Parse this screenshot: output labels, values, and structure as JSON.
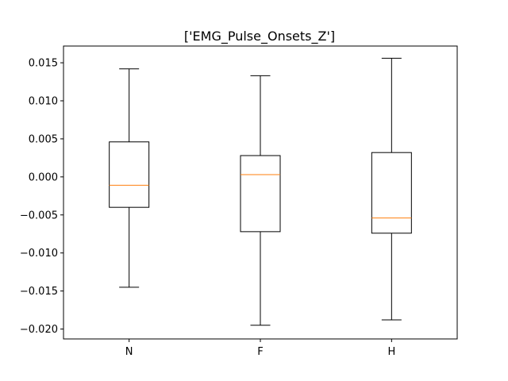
{
  "chart_data": {
    "type": "box",
    "title": "['EMG_Pulse_Onsets_Z']",
    "xlabel": "",
    "ylabel": "",
    "categories": [
      "N",
      "F",
      "H"
    ],
    "boxes": [
      {
        "whisker_low": -0.0145,
        "q1": -0.004,
        "median": -0.0011,
        "q3": 0.0046,
        "whisker_high": 0.0142
      },
      {
        "whisker_low": -0.0195,
        "q1": -0.0072,
        "median": 0.0003,
        "q3": 0.0028,
        "whisker_high": 0.0133
      },
      {
        "whisker_low": -0.0188,
        "q1": -0.0074,
        "median": -0.0054,
        "q3": 0.0032,
        "whisker_high": 0.0156
      }
    ],
    "ylim": [
      -0.0213,
      0.0172
    ],
    "yticks": [
      -0.02,
      -0.015,
      -0.01,
      -0.005,
      0.0,
      0.005,
      0.01,
      0.015
    ],
    "ytick_labels": [
      "−0.020",
      "−0.015",
      "−0.010",
      "−0.005",
      "0.000",
      "0.005",
      "0.010",
      "0.015"
    ],
    "grid": false,
    "colors": {
      "box": "#000000",
      "median": "#ff7f0e",
      "axes": "#000000"
    }
  }
}
